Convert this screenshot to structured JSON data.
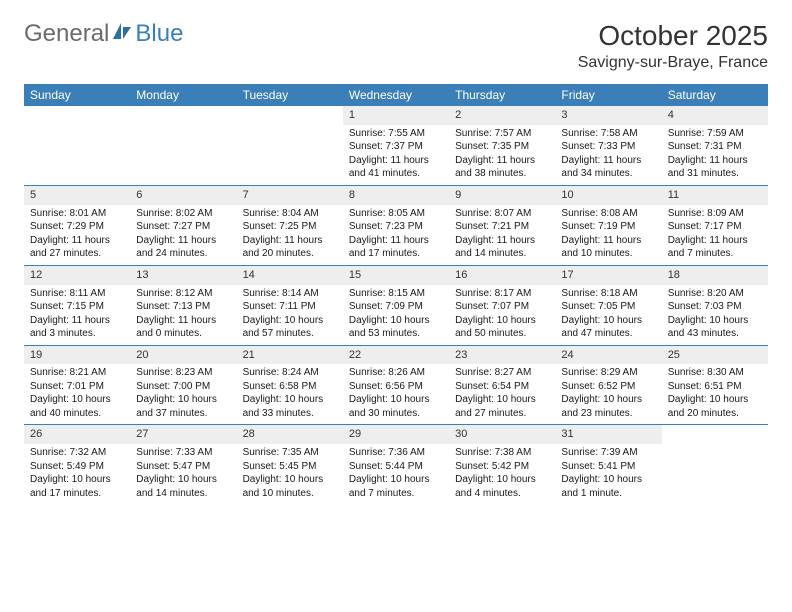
{
  "logo": {
    "left": "General",
    "right": "Blue"
  },
  "title": "October 2025",
  "location": "Savigny-sur-Braye, France",
  "colors": {
    "header_bg": "#3a7fb7",
    "header_text": "#ffffff",
    "daynum_bg": "#eeeeee",
    "row_border": "#3a7fb7",
    "text": "#1a1a1a",
    "logo_gray": "#6b6b6b",
    "logo_blue": "#3a7fb7"
  },
  "day_headers": [
    "Sunday",
    "Monday",
    "Tuesday",
    "Wednesday",
    "Thursday",
    "Friday",
    "Saturday"
  ],
  "weeks": [
    [
      {
        "n": "",
        "sunrise": "",
        "sunset": "",
        "daylight": ""
      },
      {
        "n": "",
        "sunrise": "",
        "sunset": "",
        "daylight": ""
      },
      {
        "n": "",
        "sunrise": "",
        "sunset": "",
        "daylight": ""
      },
      {
        "n": "1",
        "sunrise": "Sunrise: 7:55 AM",
        "sunset": "Sunset: 7:37 PM",
        "daylight": "Daylight: 11 hours and 41 minutes."
      },
      {
        "n": "2",
        "sunrise": "Sunrise: 7:57 AM",
        "sunset": "Sunset: 7:35 PM",
        "daylight": "Daylight: 11 hours and 38 minutes."
      },
      {
        "n": "3",
        "sunrise": "Sunrise: 7:58 AM",
        "sunset": "Sunset: 7:33 PM",
        "daylight": "Daylight: 11 hours and 34 minutes."
      },
      {
        "n": "4",
        "sunrise": "Sunrise: 7:59 AM",
        "sunset": "Sunset: 7:31 PM",
        "daylight": "Daylight: 11 hours and 31 minutes."
      }
    ],
    [
      {
        "n": "5",
        "sunrise": "Sunrise: 8:01 AM",
        "sunset": "Sunset: 7:29 PM",
        "daylight": "Daylight: 11 hours and 27 minutes."
      },
      {
        "n": "6",
        "sunrise": "Sunrise: 8:02 AM",
        "sunset": "Sunset: 7:27 PM",
        "daylight": "Daylight: 11 hours and 24 minutes."
      },
      {
        "n": "7",
        "sunrise": "Sunrise: 8:04 AM",
        "sunset": "Sunset: 7:25 PM",
        "daylight": "Daylight: 11 hours and 20 minutes."
      },
      {
        "n": "8",
        "sunrise": "Sunrise: 8:05 AM",
        "sunset": "Sunset: 7:23 PM",
        "daylight": "Daylight: 11 hours and 17 minutes."
      },
      {
        "n": "9",
        "sunrise": "Sunrise: 8:07 AM",
        "sunset": "Sunset: 7:21 PM",
        "daylight": "Daylight: 11 hours and 14 minutes."
      },
      {
        "n": "10",
        "sunrise": "Sunrise: 8:08 AM",
        "sunset": "Sunset: 7:19 PM",
        "daylight": "Daylight: 11 hours and 10 minutes."
      },
      {
        "n": "11",
        "sunrise": "Sunrise: 8:09 AM",
        "sunset": "Sunset: 7:17 PM",
        "daylight": "Daylight: 11 hours and 7 minutes."
      }
    ],
    [
      {
        "n": "12",
        "sunrise": "Sunrise: 8:11 AM",
        "sunset": "Sunset: 7:15 PM",
        "daylight": "Daylight: 11 hours and 3 minutes."
      },
      {
        "n": "13",
        "sunrise": "Sunrise: 8:12 AM",
        "sunset": "Sunset: 7:13 PM",
        "daylight": "Daylight: 11 hours and 0 minutes."
      },
      {
        "n": "14",
        "sunrise": "Sunrise: 8:14 AM",
        "sunset": "Sunset: 7:11 PM",
        "daylight": "Daylight: 10 hours and 57 minutes."
      },
      {
        "n": "15",
        "sunrise": "Sunrise: 8:15 AM",
        "sunset": "Sunset: 7:09 PM",
        "daylight": "Daylight: 10 hours and 53 minutes."
      },
      {
        "n": "16",
        "sunrise": "Sunrise: 8:17 AM",
        "sunset": "Sunset: 7:07 PM",
        "daylight": "Daylight: 10 hours and 50 minutes."
      },
      {
        "n": "17",
        "sunrise": "Sunrise: 8:18 AM",
        "sunset": "Sunset: 7:05 PM",
        "daylight": "Daylight: 10 hours and 47 minutes."
      },
      {
        "n": "18",
        "sunrise": "Sunrise: 8:20 AM",
        "sunset": "Sunset: 7:03 PM",
        "daylight": "Daylight: 10 hours and 43 minutes."
      }
    ],
    [
      {
        "n": "19",
        "sunrise": "Sunrise: 8:21 AM",
        "sunset": "Sunset: 7:01 PM",
        "daylight": "Daylight: 10 hours and 40 minutes."
      },
      {
        "n": "20",
        "sunrise": "Sunrise: 8:23 AM",
        "sunset": "Sunset: 7:00 PM",
        "daylight": "Daylight: 10 hours and 37 minutes."
      },
      {
        "n": "21",
        "sunrise": "Sunrise: 8:24 AM",
        "sunset": "Sunset: 6:58 PM",
        "daylight": "Daylight: 10 hours and 33 minutes."
      },
      {
        "n": "22",
        "sunrise": "Sunrise: 8:26 AM",
        "sunset": "Sunset: 6:56 PM",
        "daylight": "Daylight: 10 hours and 30 minutes."
      },
      {
        "n": "23",
        "sunrise": "Sunrise: 8:27 AM",
        "sunset": "Sunset: 6:54 PM",
        "daylight": "Daylight: 10 hours and 27 minutes."
      },
      {
        "n": "24",
        "sunrise": "Sunrise: 8:29 AM",
        "sunset": "Sunset: 6:52 PM",
        "daylight": "Daylight: 10 hours and 23 minutes."
      },
      {
        "n": "25",
        "sunrise": "Sunrise: 8:30 AM",
        "sunset": "Sunset: 6:51 PM",
        "daylight": "Daylight: 10 hours and 20 minutes."
      }
    ],
    [
      {
        "n": "26",
        "sunrise": "Sunrise: 7:32 AM",
        "sunset": "Sunset: 5:49 PM",
        "daylight": "Daylight: 10 hours and 17 minutes."
      },
      {
        "n": "27",
        "sunrise": "Sunrise: 7:33 AM",
        "sunset": "Sunset: 5:47 PM",
        "daylight": "Daylight: 10 hours and 14 minutes."
      },
      {
        "n": "28",
        "sunrise": "Sunrise: 7:35 AM",
        "sunset": "Sunset: 5:45 PM",
        "daylight": "Daylight: 10 hours and 10 minutes."
      },
      {
        "n": "29",
        "sunrise": "Sunrise: 7:36 AM",
        "sunset": "Sunset: 5:44 PM",
        "daylight": "Daylight: 10 hours and 7 minutes."
      },
      {
        "n": "30",
        "sunrise": "Sunrise: 7:38 AM",
        "sunset": "Sunset: 5:42 PM",
        "daylight": "Daylight: 10 hours and 4 minutes."
      },
      {
        "n": "31",
        "sunrise": "Sunrise: 7:39 AM",
        "sunset": "Sunset: 5:41 PM",
        "daylight": "Daylight: 10 hours and 1 minute."
      },
      {
        "n": "",
        "sunrise": "",
        "sunset": "",
        "daylight": ""
      }
    ]
  ]
}
